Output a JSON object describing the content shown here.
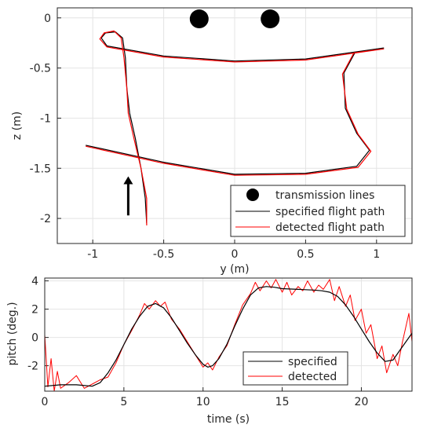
{
  "chart_data": [
    {
      "type": "line",
      "xlabel": "y (m)",
      "ylabel": "z (m)",
      "xlim": [
        -1.25,
        1.25
      ],
      "ylim": [
        -2.25,
        0.1
      ],
      "xticks": [
        -1,
        -0.5,
        0,
        0.5,
        1
      ],
      "yticks": [
        0,
        -0.5,
        -1,
        -1.5,
        -2
      ],
      "xtick_labels": [
        "-1",
        "-0.5",
        "0",
        "0.5",
        "1"
      ],
      "ytick_labels": [
        "0",
        "-0.5",
        "-1",
        "-1.5",
        "-2"
      ],
      "grid": true,
      "legend_position": "bottom-right",
      "transmission_lines": {
        "name": "transmission lines",
        "y": [
          -0.25,
          0.25
        ],
        "z": [
          -0.01,
          -0.01
        ],
        "color": "#000000"
      },
      "series": [
        {
          "name": "specified flight path",
          "color": "#000000",
          "points": [
            [
              -0.62,
              -2.05
            ],
            [
              -0.63,
              -1.8
            ],
            [
              -0.66,
              -1.5
            ],
            [
              -0.7,
              -1.2
            ],
            [
              -0.74,
              -0.95
            ],
            [
              -0.76,
              -0.7
            ],
            [
              -0.77,
              -0.4
            ],
            [
              -0.79,
              -0.2
            ],
            [
              -0.84,
              -0.14
            ],
            [
              -0.91,
              -0.15
            ],
            [
              -0.94,
              -0.2
            ],
            [
              -0.9,
              -0.28
            ],
            [
              -0.5,
              -0.38
            ],
            [
              0.0,
              -0.43
            ],
            [
              0.5,
              -0.41
            ],
            [
              1.05,
              -0.3
            ],
            [
              0.85,
              -0.34
            ],
            [
              0.77,
              -0.55
            ],
            [
              0.78,
              -0.9
            ],
            [
              0.86,
              -1.15
            ],
            [
              0.95,
              -1.32
            ],
            [
              0.86,
              -1.48
            ],
            [
              0.5,
              -1.55
            ],
            [
              0.0,
              -1.56
            ],
            [
              -0.5,
              -1.44
            ],
            [
              -1.05,
              -1.27
            ]
          ]
        },
        {
          "name": "detected flight path",
          "color": "#ff0000",
          "points": [
            [
              -0.62,
              -2.07
            ],
            [
              -0.62,
              -1.8
            ],
            [
              -0.66,
              -1.5
            ],
            [
              -0.71,
              -1.2
            ],
            [
              -0.75,
              -0.95
            ],
            [
              -0.76,
              -0.7
            ],
            [
              -0.78,
              -0.4
            ],
            [
              -0.8,
              -0.2
            ],
            [
              -0.85,
              -0.13
            ],
            [
              -0.92,
              -0.15
            ],
            [
              -0.95,
              -0.21
            ],
            [
              -0.9,
              -0.29
            ],
            [
              -0.5,
              -0.39
            ],
            [
              0.0,
              -0.44
            ],
            [
              0.5,
              -0.42
            ],
            [
              1.05,
              -0.31
            ],
            [
              0.84,
              -0.35
            ],
            [
              0.76,
              -0.56
            ],
            [
              0.79,
              -0.91
            ],
            [
              0.87,
              -1.16
            ],
            [
              0.96,
              -1.33
            ],
            [
              0.87,
              -1.49
            ],
            [
              0.5,
              -1.56
            ],
            [
              0.0,
              -1.57
            ],
            [
              -0.5,
              -1.45
            ],
            [
              -1.05,
              -1.28
            ]
          ]
        }
      ],
      "arrow": {
        "y": -0.75,
        "z_from": -1.97,
        "z_to": -1.58
      }
    },
    {
      "type": "line",
      "xlabel": "time (s)",
      "ylabel": "pitch (deg.)",
      "xlim": [
        0,
        23.2
      ],
      "ylim": [
        -3.8,
        4.2
      ],
      "xticks": [
        0,
        5,
        10,
        15,
        20
      ],
      "yticks": [
        4,
        2,
        0,
        -2
      ],
      "xtick_labels": [
        "0",
        "5",
        "10",
        "15",
        "20"
      ],
      "ytick_labels": [
        "4",
        "2",
        "0",
        "-2"
      ],
      "grid": true,
      "legend_position": "bottom-right",
      "series": [
        {
          "name": "specified",
          "color": "#000000",
          "x": [
            0,
            1,
            2,
            3,
            3.5,
            4,
            4.5,
            5,
            5.5,
            6,
            6.5,
            7,
            7.5,
            8,
            8.5,
            9,
            9.5,
            10,
            10.3,
            10.6,
            11,
            11.5,
            12,
            12.5,
            13,
            13.5,
            14,
            14.5,
            15,
            16,
            17,
            17.5,
            18,
            18.5,
            19,
            19.5,
            20,
            20.5,
            21,
            21.5,
            22,
            22.5,
            23.2
          ],
          "values": [
            -3.45,
            -3.35,
            -3.35,
            -3.45,
            -3.2,
            -2.5,
            -1.6,
            -0.5,
            0.6,
            1.5,
            2.2,
            2.4,
            2.1,
            1.4,
            0.5,
            -0.4,
            -1.2,
            -1.9,
            -2.1,
            -2.0,
            -1.5,
            -0.5,
            0.8,
            2.0,
            3.0,
            3.5,
            3.6,
            3.55,
            3.45,
            3.4,
            3.35,
            3.3,
            3.2,
            2.9,
            2.3,
            1.5,
            0.6,
            -0.3,
            -1.1,
            -1.7,
            -1.6,
            -0.8,
            0.3
          ]
        },
        {
          "name": "detected",
          "color": "#ff0000",
          "x": [
            0,
            0.2,
            0.4,
            0.6,
            0.8,
            1,
            1.5,
            2,
            2.5,
            3,
            3.5,
            4,
            4.5,
            5,
            5.5,
            6,
            6.3,
            6.6,
            7,
            7.3,
            7.6,
            8,
            8.5,
            9,
            9.5,
            10,
            10.3,
            10.6,
            11,
            11.5,
            12,
            12.5,
            13,
            13.3,
            13.6,
            14,
            14.3,
            14.6,
            15,
            15.3,
            15.6,
            16,
            16.3,
            16.6,
            17,
            17.3,
            17.6,
            18,
            18.3,
            18.6,
            19,
            19.3,
            19.6,
            20,
            20.3,
            20.6,
            21,
            21.3,
            21.6,
            22,
            22.3,
            22.6,
            23,
            23.2
          ],
          "values": [
            0.2,
            -3.5,
            -1.5,
            -3.8,
            -2.4,
            -3.6,
            -3.2,
            -2.7,
            -3.6,
            -3.3,
            -3.0,
            -2.8,
            -1.8,
            -0.5,
            0.5,
            1.6,
            2.4,
            2.0,
            2.6,
            2.2,
            2.5,
            1.3,
            0.6,
            -0.3,
            -1.2,
            -2.1,
            -1.8,
            -2.3,
            -1.4,
            -0.6,
            0.9,
            2.3,
            3.1,
            3.9,
            3.3,
            4.0,
            3.5,
            4.1,
            3.2,
            3.9,
            3.0,
            3.6,
            3.3,
            4.0,
            3.2,
            3.7,
            3.4,
            4.1,
            2.6,
            3.6,
            2.2,
            3.0,
            1.2,
            2.0,
            0.3,
            0.9,
            -1.5,
            -0.6,
            -2.5,
            -1.2,
            -2.0,
            -0.3,
            1.7,
            -0.3
          ]
        }
      ]
    }
  ]
}
